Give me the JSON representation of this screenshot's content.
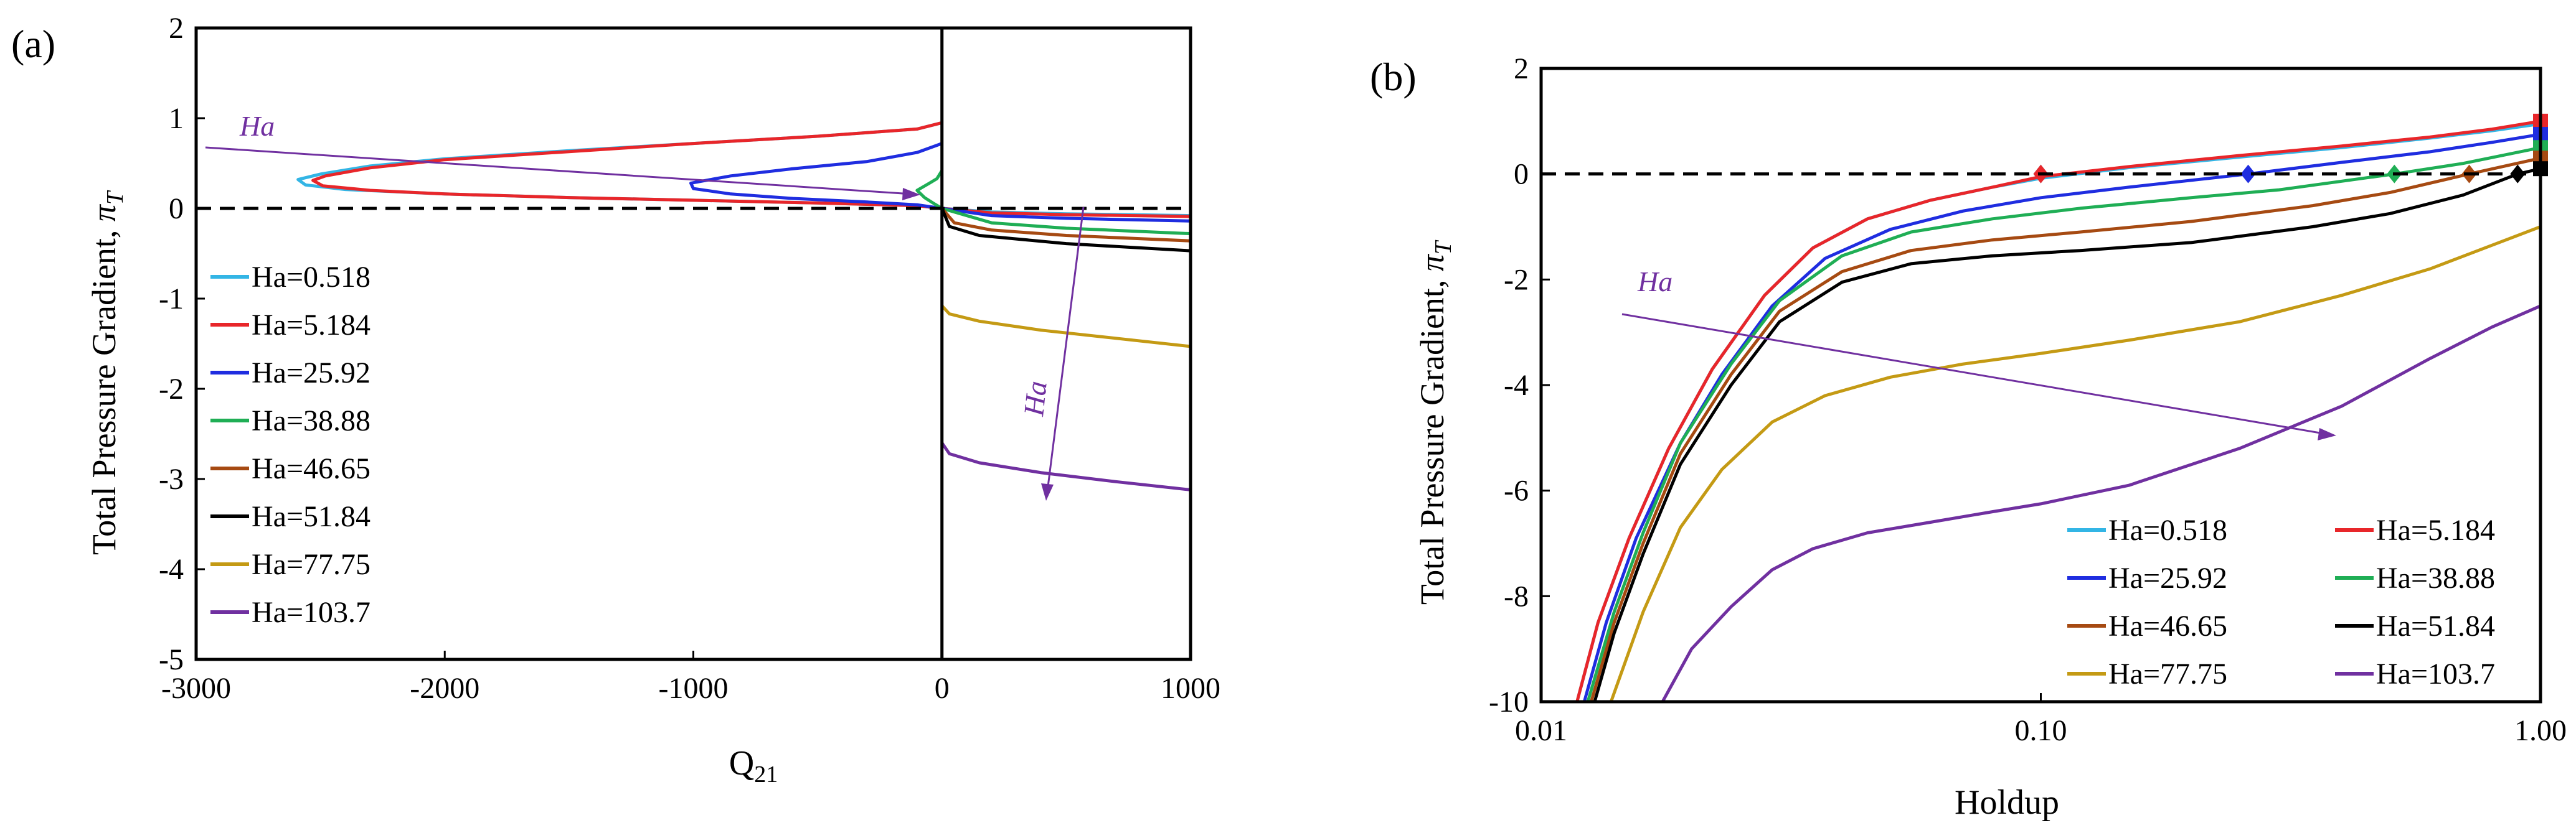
{
  "colors": {
    "Ha=0.518": "#33b5e5",
    "Ha=5.184": "#e8262a",
    "Ha=25.92": "#1f2de0",
    "Ha=38.88": "#1fae55",
    "Ha=46.65": "#a64a12",
    "Ha=51.84": "#000000",
    "Ha=77.75": "#c49a14",
    "Ha=103.7": "#7030a0",
    "annotation": "#7030a0"
  },
  "chart_data": [
    {
      "type": "line",
      "panel_label": "(a)",
      "xlabel": "Q",
      "xlabel_sub": "21",
      "ylabel": "Total Pressure Gradient, ",
      "ylabel_sym": "π",
      "ylabel_sub": "T",
      "xlim": [
        -3000,
        1000
      ],
      "ylim": [
        -5,
        2
      ],
      "x_ticks": [
        -3000,
        -2000,
        -1000,
        0,
        1000
      ],
      "x_tick_labels": [
        "-3000",
        "-2000",
        "-1000",
        "0",
        "1000"
      ],
      "y_ticks": [
        2,
        1,
        0,
        -1,
        -2,
        -3,
        -4,
        -5
      ],
      "y_tick_labels": [
        "2",
        "1",
        "0",
        "-1",
        "-2",
        "-3",
        "-4",
        "-5"
      ],
      "reference_line": {
        "y": 0,
        "style": "dashed"
      },
      "vertical_line": {
        "x": 0
      },
      "legend_position": "left",
      "annotations": [
        {
          "text": "Ha",
          "direction": "toward lower-right"
        },
        {
          "text": "Ha",
          "direction": "downward"
        }
      ],
      "series": [
        {
          "name": "Ha=0.518",
          "segments": [
            [
              [
                0,
                0.95
              ],
              [
                -100,
                0.88
              ],
              [
                -500,
                0.8
              ],
              [
                -1000,
                0.72
              ],
              [
                -1500,
                0.64
              ],
              [
                -2000,
                0.55
              ],
              [
                -2300,
                0.47
              ],
              [
                -2500,
                0.38
              ],
              [
                -2590,
                0.32
              ],
              [
                -2560,
                0.26
              ],
              [
                -2400,
                0.21
              ],
              [
                -2000,
                0.16
              ],
              [
                -1500,
                0.12
              ],
              [
                -1000,
                0.09
              ],
              [
                -500,
                0.06
              ],
              [
                -100,
                0.03
              ],
              [
                0,
                0
              ]
            ],
            [
              [
                0,
                0
              ],
              [
                200,
                -0.04
              ],
              [
                500,
                -0.06
              ],
              [
                1000,
                -0.08
              ]
            ]
          ]
        },
        {
          "name": "Ha=5.184",
          "segments": [
            [
              [
                0,
                0.95
              ],
              [
                -100,
                0.88
              ],
              [
                -500,
                0.8
              ],
              [
                -1000,
                0.72
              ],
              [
                -1500,
                0.63
              ],
              [
                -2000,
                0.54
              ],
              [
                -2300,
                0.45
              ],
              [
                -2480,
                0.36
              ],
              [
                -2530,
                0.31
              ],
              [
                -2490,
                0.25
              ],
              [
                -2300,
                0.2
              ],
              [
                -2000,
                0.16
              ],
              [
                -1500,
                0.12
              ],
              [
                -1000,
                0.09
              ],
              [
                -500,
                0.06
              ],
              [
                -100,
                0.03
              ],
              [
                0,
                0
              ]
            ],
            [
              [
                0,
                0
              ],
              [
                200,
                -0.05
              ],
              [
                500,
                -0.07
              ],
              [
                1000,
                -0.09
              ]
            ]
          ]
        },
        {
          "name": "Ha=25.92",
          "segments": [
            [
              [
                0,
                0.72
              ],
              [
                -100,
                0.62
              ],
              [
                -300,
                0.52
              ],
              [
                -600,
                0.44
              ],
              [
                -850,
                0.36
              ],
              [
                -1010,
                0.28
              ],
              [
                -1000,
                0.22
              ],
              [
                -850,
                0.16
              ],
              [
                -600,
                0.11
              ],
              [
                -300,
                0.07
              ],
              [
                -100,
                0.04
              ],
              [
                0,
                0
              ]
            ],
            [
              [
                0,
                0
              ],
              [
                200,
                -0.08
              ],
              [
                500,
                -0.11
              ],
              [
                1000,
                -0.14
              ]
            ]
          ]
        },
        {
          "name": "Ha=38.88",
          "segments": [
            [
              [
                0,
                0.42
              ],
              [
                -20,
                0.33
              ],
              [
                -50,
                0.28
              ],
              [
                -100,
                0.2
              ],
              [
                -70,
                0.12
              ],
              [
                -30,
                0.05
              ],
              [
                0,
                0
              ]
            ],
            [
              [
                0,
                0
              ],
              [
                200,
                -0.16
              ],
              [
                500,
                -0.22
              ],
              [
                1000,
                -0.28
              ]
            ]
          ]
        },
        {
          "name": "Ha=46.65",
          "segments": [
            [
              [
                0,
                0
              ],
              [
                50,
                -0.16
              ],
              [
                200,
                -0.24
              ],
              [
                500,
                -0.3
              ],
              [
                1000,
                -0.36
              ]
            ]
          ]
        },
        {
          "name": "Ha=51.84",
          "segments": [
            [
              [
                0,
                0
              ],
              [
                30,
                -0.2
              ],
              [
                150,
                -0.3
              ],
              [
                500,
                -0.39
              ],
              [
                1000,
                -0.47
              ]
            ]
          ]
        },
        {
          "name": "Ha=77.75",
          "segments": [
            [
              [
                0,
                -1.08
              ],
              [
                30,
                -1.17
              ],
              [
                150,
                -1.25
              ],
              [
                400,
                -1.35
              ],
              [
                700,
                -1.44
              ],
              [
                1000,
                -1.53
              ]
            ]
          ]
        },
        {
          "name": "Ha=103.7",
          "segments": [
            [
              [
                0,
                -2.6
              ],
              [
                30,
                -2.72
              ],
              [
                150,
                -2.82
              ],
              [
                400,
                -2.93
              ],
              [
                700,
                -3.03
              ],
              [
                1000,
                -3.12
              ]
            ]
          ]
        }
      ]
    },
    {
      "type": "line",
      "panel_label": "(b)",
      "xlabel": "Holdup",
      "ylabel": "Total Pressure Gradient, ",
      "ylabel_sym": "π",
      "ylabel_sub": "T",
      "xscale": "log",
      "xlim": [
        0.01,
        1.0
      ],
      "ylim": [
        -10,
        2
      ],
      "x_ticks": [
        0.01,
        0.1,
        1.0
      ],
      "x_tick_labels": [
        "0.01",
        "0.10",
        "1.00"
      ],
      "y_ticks": [
        2,
        0,
        -2,
        -4,
        -6,
        -8,
        -10
      ],
      "y_tick_labels": [
        "2",
        "0",
        "-2",
        "-4",
        "-6",
        "-8",
        "-10"
      ],
      "reference_line": {
        "y": 0,
        "style": "dashed"
      },
      "legend_position": "bottom-right",
      "annotations": [
        {
          "text": "Ha",
          "direction": "toward lower-right"
        }
      ],
      "series": [
        {
          "name": "Ha=0.518",
          "x": [
            0.0118,
            0.013,
            0.015,
            0.018,
            0.022,
            0.028,
            0.035,
            0.045,
            0.06,
            0.08,
            0.1,
            0.15,
            0.25,
            0.4,
            0.6,
            0.8,
            1.0
          ],
          "y": [
            -10,
            -8.5,
            -6.9,
            -5.2,
            -3.7,
            -2.3,
            -1.4,
            -0.85,
            -0.5,
            -0.25,
            -0.08,
            0.12,
            0.32,
            0.5,
            0.68,
            0.82,
            0.95
          ],
          "marker": {
            "x": 0.1,
            "y": 0,
            "shape": "diamond"
          },
          "end_marker": {
            "x": 1.0,
            "y": 0.95,
            "shape": "square"
          }
        },
        {
          "name": "Ha=5.184",
          "x": [
            0.0118,
            0.013,
            0.015,
            0.018,
            0.022,
            0.028,
            0.035,
            0.045,
            0.06,
            0.08,
            0.1,
            0.15,
            0.25,
            0.4,
            0.6,
            0.8,
            1.0
          ],
          "y": [
            -10,
            -8.5,
            -6.9,
            -5.2,
            -3.7,
            -2.3,
            -1.4,
            -0.85,
            -0.5,
            -0.25,
            -0.05,
            0.14,
            0.35,
            0.53,
            0.7,
            0.85,
            1.0
          ],
          "marker": {
            "x": 0.1,
            "y": 0,
            "shape": "diamond"
          },
          "end_marker": {
            "x": 1.0,
            "y": 1.0,
            "shape": "square"
          }
        },
        {
          "name": "Ha=25.92",
          "x": [
            0.0122,
            0.0135,
            0.0155,
            0.019,
            0.023,
            0.029,
            0.037,
            0.05,
            0.07,
            0.1,
            0.15,
            0.26,
            0.4,
            0.6,
            0.8,
            1.0
          ],
          "y": [
            -10,
            -8.5,
            -6.9,
            -5.1,
            -3.8,
            -2.5,
            -1.6,
            -1.05,
            -0.7,
            -0.45,
            -0.25,
            0.0,
            0.22,
            0.42,
            0.6,
            0.75
          ],
          "marker": {
            "x": 0.26,
            "y": 0,
            "shape": "diamond"
          },
          "end_marker": {
            "x": 1.0,
            "y": 0.75,
            "shape": "square"
          }
        },
        {
          "name": "Ha=38.88",
          "x": [
            0.0124,
            0.014,
            0.016,
            0.019,
            0.024,
            0.03,
            0.04,
            0.055,
            0.08,
            0.12,
            0.2,
            0.3,
            0.51,
            0.7,
            1.0
          ],
          "y": [
            -10,
            -8.3,
            -6.8,
            -5.1,
            -3.6,
            -2.4,
            -1.55,
            -1.1,
            -0.85,
            -0.65,
            -0.45,
            -0.3,
            0.0,
            0.2,
            0.5
          ],
          "marker": {
            "x": 0.51,
            "y": 0,
            "shape": "diamond"
          },
          "end_marker": {
            "x": 1.0,
            "y": 0.5,
            "shape": "square"
          }
        },
        {
          "name": "Ha=46.65",
          "x": [
            0.0126,
            0.014,
            0.016,
            0.019,
            0.024,
            0.03,
            0.04,
            0.055,
            0.08,
            0.12,
            0.2,
            0.35,
            0.5,
            0.72,
            1.0
          ],
          "y": [
            -10,
            -8.5,
            -7.0,
            -5.3,
            -3.8,
            -2.6,
            -1.85,
            -1.45,
            -1.25,
            -1.1,
            -0.9,
            -0.6,
            -0.35,
            0.0,
            0.3
          ],
          "marker": {
            "x": 0.72,
            "y": 0,
            "shape": "diamond"
          },
          "end_marker": {
            "x": 1.0,
            "y": 0.3,
            "shape": "square"
          }
        },
        {
          "name": "Ha=51.84",
          "x": [
            0.0128,
            0.014,
            0.016,
            0.019,
            0.024,
            0.03,
            0.04,
            0.055,
            0.08,
            0.12,
            0.2,
            0.35,
            0.5,
            0.7,
            0.9,
            1.0
          ],
          "y": [
            -10,
            -8.7,
            -7.2,
            -5.5,
            -4.0,
            -2.8,
            -2.05,
            -1.7,
            -1.55,
            -1.45,
            -1.3,
            -1.0,
            -0.75,
            -0.4,
            0.0,
            0.1
          ],
          "marker": {
            "x": 0.9,
            "y": 0,
            "shape": "diamond"
          },
          "end_marker": {
            "x": 1.0,
            "y": 0.1,
            "shape": "square"
          }
        },
        {
          "name": "Ha=77.75",
          "x": [
            0.0138,
            0.016,
            0.019,
            0.023,
            0.029,
            0.037,
            0.05,
            0.07,
            0.1,
            0.15,
            0.25,
            0.4,
            0.6,
            0.8,
            1.0
          ],
          "y": [
            -10,
            -8.3,
            -6.7,
            -5.6,
            -4.7,
            -4.2,
            -3.85,
            -3.6,
            -3.4,
            -3.15,
            -2.8,
            -2.3,
            -1.8,
            -1.35,
            -1.0
          ]
        },
        {
          "name": "Ha=103.7",
          "x": [
            0.0175,
            0.02,
            0.024,
            0.029,
            0.035,
            0.045,
            0.06,
            0.08,
            0.1,
            0.15,
            0.25,
            0.4,
            0.6,
            0.8,
            1.0
          ],
          "y": [
            -10,
            -9.0,
            -8.2,
            -7.5,
            -7.1,
            -6.8,
            -6.6,
            -6.4,
            -6.25,
            -5.9,
            -5.2,
            -4.4,
            -3.5,
            -2.9,
            -2.5
          ]
        }
      ]
    }
  ]
}
